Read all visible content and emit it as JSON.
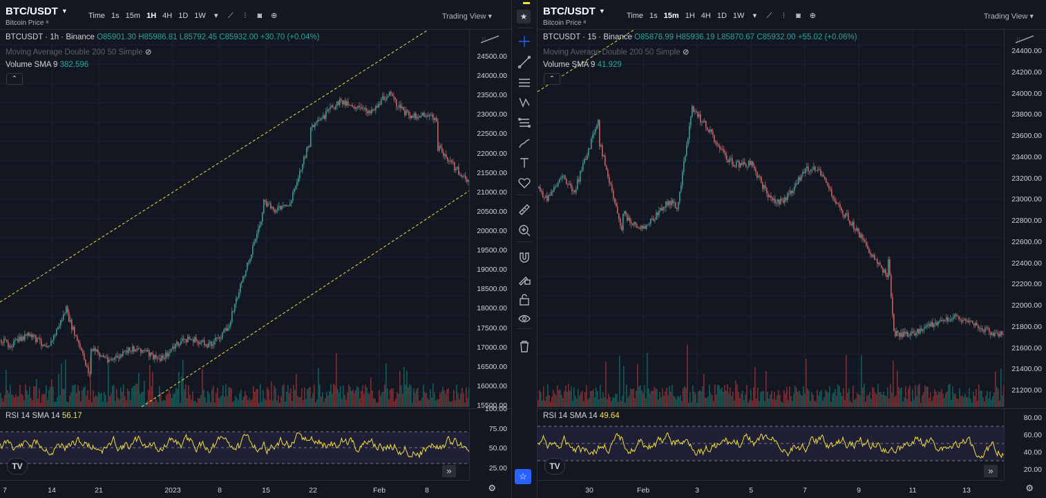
{
  "left": {
    "symbol": "BTC/USDT",
    "subtitle": "Bitcoin Price ᵃ",
    "intervals": [
      "Time",
      "1s",
      "15m",
      "1H",
      "4H",
      "1D",
      "1W"
    ],
    "active_interval": "1H",
    "trading_view": "Trading View",
    "legend_main": {
      "title": "BTCUSDT · 1h · Binance",
      "o": "O85901.30",
      "h": "H85986.81",
      "l": "L85792.45",
      "c": "C85932.00",
      "chg": "+30.70 (+0.04%)"
    },
    "legend_ma": "Moving Average Double 200 50 Simple",
    "legend_volume_label": "Volume SMA 9",
    "legend_volume_value": "382.596",
    "rsi_label": "RSI 14 SMA 14",
    "rsi_value": "56.17",
    "price_ticks": [
      "24500.00",
      "24000.00",
      "23500.00",
      "23000.00",
      "22500.00",
      "22000.00",
      "21500.00",
      "21000.00",
      "20500.00",
      "20000.00",
      "19500.00",
      "19000.00",
      "18500.00",
      "18000.00",
      "17500.00",
      "17000.00",
      "16500.00",
      "16000.00",
      "15500.00"
    ],
    "rsi_ticks": [
      "100.00",
      "75.00",
      "50.00",
      "25.00"
    ],
    "time_ticks": [
      "7",
      "14",
      "21",
      "2023",
      "8",
      "15",
      "22",
      "Feb",
      "8"
    ]
  },
  "right": {
    "symbol": "BTC/USDT",
    "subtitle": "Bitcoin Price ᵃ",
    "intervals": [
      "Time",
      "1s",
      "15m",
      "1H",
      "4H",
      "1D",
      "1W"
    ],
    "active_interval": "15m",
    "trading_view": "Trading View",
    "legend_main": {
      "title": "BTCUSDT · 15 · Binance",
      "o": "O85876.99",
      "h": "H85936.19",
      "l": "L85870.67",
      "c": "C85932.00",
      "chg": "+55.02 (+0.06%)"
    },
    "legend_ma": "Moving Average Double 200 50 Simple",
    "legend_volume_label": "Volume SMA 9",
    "legend_volume_value": "41.929",
    "rsi_label": "RSI 14 SMA 14",
    "rsi_value": "49.64",
    "price_ticks": [
      "24400.00",
      "24200.00",
      "24000.00",
      "23800.00",
      "23600.00",
      "23400.00",
      "23200.00",
      "23000.00",
      "22800.00",
      "22600.00",
      "22400.00",
      "22200.00",
      "22000.00",
      "21800.00",
      "21600.00",
      "21400.00",
      "21200.00"
    ],
    "rsi_ticks": [
      "80.00",
      "60.00",
      "40.00",
      "20.00"
    ],
    "time_ticks": [
      "30",
      "Feb",
      "3",
      "5",
      "7",
      "9",
      "11",
      "13"
    ]
  },
  "colors": {
    "up": "#26a69a",
    "down": "#ef5350",
    "rsi": "#f7e03b",
    "bg": "#131722",
    "grid": "#1e222d",
    "channel": "#f7e03b"
  },
  "toolbar_icons": [
    "crosshair-icon",
    "trend-line-icon",
    "horizontal-lines-icon",
    "pattern-icon",
    "projection-icon",
    "brush-icon",
    "text-icon",
    "heart-icon",
    "ruler-icon",
    "zoom-icon",
    "magnet-icon",
    "lock-pencil-icon",
    "lock-icon",
    "eye-icon",
    "trash-icon"
  ]
}
